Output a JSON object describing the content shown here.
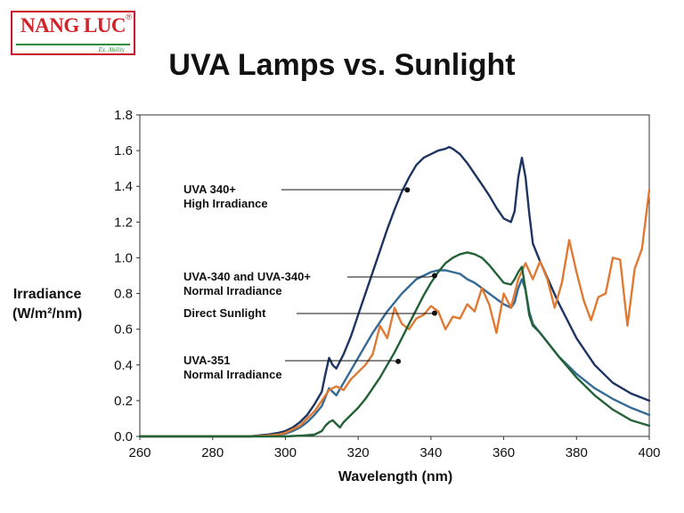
{
  "logo": {
    "name": "NANG LUC",
    "reg_mark": "®",
    "tagline": "Ex. Ability"
  },
  "header": {
    "title": "UVA Lamps vs. Sunlight"
  },
  "chart_data": {
    "type": "line",
    "title": "UVA Lamps vs. Sunlight",
    "xlabel": "Wavelength (nm)",
    "ylabel_lines": [
      "Irradiance",
      "(W/m²/nm)"
    ],
    "xlim": [
      260,
      400
    ],
    "ylim": [
      0,
      1.8
    ],
    "xticks": [
      260,
      280,
      300,
      320,
      340,
      360,
      380,
      400
    ],
    "yticks": [
      "0.0",
      "0.2",
      "0.4",
      "0.6",
      "0.8",
      "1.0",
      "1.2",
      "1.4",
      "1.6",
      "1.8"
    ],
    "grid": false,
    "series": [
      {
        "name": "UVA 340+ High Irradiance",
        "color": "#1e3461",
        "x": [
          260,
          290,
          295,
          298,
          300,
          302,
          304,
          306,
          308,
          310,
          311,
          312,
          313,
          314,
          316,
          318,
          320,
          322,
          324,
          326,
          328,
          330,
          332,
          334,
          336,
          338,
          340,
          342,
          344,
          345,
          346,
          348,
          350,
          352,
          354,
          356,
          358,
          360,
          362,
          363,
          364,
          365,
          366,
          367,
          368,
          370,
          375,
          380,
          385,
          390,
          395,
          400
        ],
        "y": [
          0,
          0,
          0.01,
          0.02,
          0.03,
          0.05,
          0.08,
          0.12,
          0.18,
          0.25,
          0.35,
          0.44,
          0.4,
          0.38,
          0.46,
          0.56,
          0.68,
          0.8,
          0.92,
          1.04,
          1.16,
          1.27,
          1.37,
          1.45,
          1.52,
          1.56,
          1.58,
          1.6,
          1.61,
          1.62,
          1.61,
          1.58,
          1.53,
          1.47,
          1.41,
          1.35,
          1.28,
          1.22,
          1.2,
          1.26,
          1.45,
          1.56,
          1.45,
          1.25,
          1.08,
          0.98,
          0.75,
          0.55,
          0.4,
          0.3,
          0.24,
          0.2
        ]
      },
      {
        "name": "UVA-340 and UVA-340+ Normal Irradiance",
        "color": "#346a96",
        "x": [
          260,
          290,
          295,
          298,
          300,
          302,
          304,
          306,
          308,
          310,
          311,
          312,
          313,
          314,
          316,
          318,
          320,
          322,
          324,
          326,
          328,
          330,
          332,
          334,
          336,
          338,
          340,
          342,
          344,
          346,
          348,
          350,
          352,
          354,
          356,
          358,
          360,
          362,
          363,
          364,
          365,
          366,
          367,
          368,
          370,
          375,
          380,
          385,
          390,
          395,
          400
        ],
        "y": [
          0,
          0,
          0.005,
          0.01,
          0.015,
          0.03,
          0.05,
          0.08,
          0.12,
          0.17,
          0.22,
          0.27,
          0.25,
          0.23,
          0.3,
          0.37,
          0.44,
          0.51,
          0.58,
          0.64,
          0.7,
          0.75,
          0.8,
          0.84,
          0.88,
          0.9,
          0.92,
          0.93,
          0.93,
          0.92,
          0.91,
          0.88,
          0.86,
          0.83,
          0.8,
          0.77,
          0.74,
          0.72,
          0.75,
          0.83,
          0.88,
          0.82,
          0.7,
          0.63,
          0.58,
          0.45,
          0.35,
          0.27,
          0.21,
          0.16,
          0.12
        ]
      },
      {
        "name": "Direct Sunlight",
        "color": "#e07a33",
        "x": [
          260,
          290,
          295,
          298,
          300,
          302,
          304,
          306,
          308,
          310,
          312,
          314,
          316,
          318,
          320,
          322,
          324,
          326,
          328,
          330,
          332,
          334,
          336,
          338,
          340,
          342,
          344,
          346,
          348,
          350,
          352,
          354,
          356,
          358,
          360,
          362,
          364,
          366,
          368,
          370,
          372,
          374,
          376,
          378,
          380,
          382,
          384,
          386,
          388,
          390,
          392,
          394,
          396,
          398,
          400
        ],
        "y": [
          0,
          0,
          0.005,
          0.01,
          0.02,
          0.04,
          0.06,
          0.1,
          0.14,
          0.2,
          0.26,
          0.28,
          0.26,
          0.32,
          0.36,
          0.4,
          0.46,
          0.62,
          0.55,
          0.72,
          0.63,
          0.6,
          0.66,
          0.68,
          0.73,
          0.7,
          0.6,
          0.67,
          0.66,
          0.74,
          0.7,
          0.83,
          0.74,
          0.58,
          0.8,
          0.72,
          0.88,
          0.97,
          0.88,
          0.98,
          0.88,
          0.72,
          0.86,
          1.1,
          0.92,
          0.76,
          0.65,
          0.78,
          0.8,
          1.0,
          0.99,
          0.62,
          0.94,
          1.05,
          1.38
        ]
      },
      {
        "name": "UVA-351 Normal Irradiance",
        "color": "#236236",
        "x": [
          260,
          300,
          305,
          308,
          310,
          311,
          312,
          313,
          314,
          315,
          316,
          318,
          320,
          322,
          324,
          326,
          328,
          330,
          332,
          334,
          336,
          338,
          340,
          342,
          344,
          346,
          348,
          350,
          352,
          354,
          356,
          358,
          360,
          362,
          363,
          364,
          365,
          366,
          367,
          368,
          370,
          375,
          380,
          385,
          390,
          395,
          400
        ],
        "y": [
          0,
          0,
          0.005,
          0.01,
          0.03,
          0.06,
          0.08,
          0.09,
          0.07,
          0.05,
          0.08,
          0.12,
          0.16,
          0.21,
          0.27,
          0.33,
          0.4,
          0.47,
          0.55,
          0.63,
          0.71,
          0.79,
          0.86,
          0.92,
          0.97,
          1.0,
          1.02,
          1.03,
          1.02,
          1.0,
          0.96,
          0.91,
          0.86,
          0.85,
          0.88,
          0.92,
          0.95,
          0.82,
          0.68,
          0.62,
          0.58,
          0.45,
          0.33,
          0.23,
          0.15,
          0.09,
          0.06
        ]
      }
    ],
    "annotations": [
      {
        "lines": [
          "UVA 340+",
          "High Irradiance"
        ],
        "series": "UVA 340+ High Irradiance",
        "x": 333.5,
        "y": 1.38
      },
      {
        "lines": [
          "UVA-340 and UVA-340+",
          "Normal Irradiance"
        ],
        "series": "UVA-340 and UVA-340+ Normal Irradiance",
        "x": 341,
        "y": 0.9
      },
      {
        "lines": [
          "Direct Sunlight"
        ],
        "series": "Direct Sunlight",
        "x": 341,
        "y": 0.69
      },
      {
        "lines": [
          "UVA-351",
          "Normal Irradiance"
        ],
        "series": "UVA-351 Normal Irradiance",
        "x": 331,
        "y": 0.42
      }
    ]
  }
}
